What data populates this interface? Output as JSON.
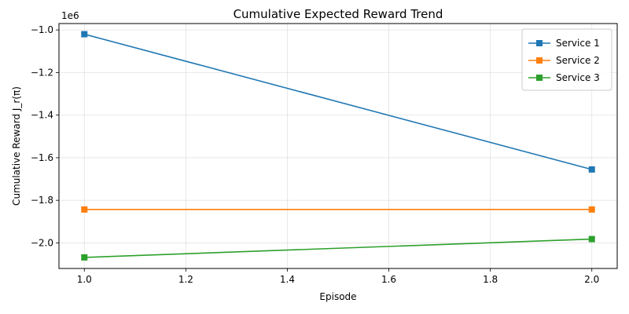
{
  "chart_data": {
    "type": "line",
    "title": "Cumulative Expected Reward Trend",
    "xlabel": "Episode",
    "ylabel": "Cumulative Reward J_r(π)",
    "y_offset_label": "1e6",
    "x": [
      1.0,
      2.0
    ],
    "xlim": [
      0.95,
      2.05
    ],
    "ylim": [
      -2.12,
      -0.97
    ],
    "x_ticks": [
      1.0,
      1.2,
      1.4,
      1.6,
      1.8,
      2.0
    ],
    "x_tick_labels": [
      "1.0",
      "1.2",
      "1.4",
      "1.6",
      "1.8",
      "2.0"
    ],
    "y_ticks": [
      -2.0,
      -1.8,
      -1.6,
      -1.4,
      -1.2,
      -1.0
    ],
    "y_tick_labels": [
      "−2.0",
      "−1.8",
      "−1.6",
      "−1.4",
      "−1.2",
      "−1.0"
    ],
    "grid": true,
    "legend_position": "top-right",
    "marker": "square",
    "series": [
      {
        "name": "Service 1",
        "color": "#1f77b4",
        "values": [
          -1.02,
          -1.655
        ]
      },
      {
        "name": "Service 2",
        "color": "#ff7f0e",
        "values": [
          -1.843,
          -1.843
        ]
      },
      {
        "name": "Service 3",
        "color": "#2ca02c",
        "values": [
          -2.068,
          -1.982
        ]
      }
    ]
  }
}
